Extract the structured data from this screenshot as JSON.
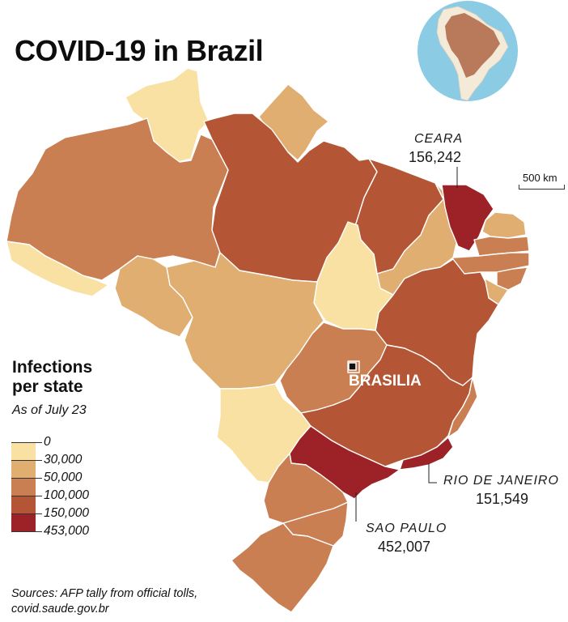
{
  "title": "COVID-19 in Brazil",
  "legend": {
    "title_line1": "Infections",
    "title_line2": "per state",
    "subtitle": "As of July 23",
    "ticks": [
      "0",
      "30,000",
      "50,000",
      "100,000",
      "150,000",
      "453,000"
    ],
    "colors": [
      "#f8e1a2",
      "#e0ae71",
      "#c97f52",
      "#b45635",
      "#9c2227"
    ]
  },
  "callouts": {
    "ceara": {
      "name": "CEARA",
      "value": "156,242"
    },
    "rio": {
      "name": "RIO DE JANEIRO",
      "value": "151,549"
    },
    "saopaulo": {
      "name": "SAO PAULO",
      "value": "452,007"
    }
  },
  "capital": {
    "name": "BRASILIA"
  },
  "scale": {
    "label": "500 km"
  },
  "sources": {
    "line1": "Sources: AFP tally from official tolls,",
    "line2": "covid.saude.gov.br"
  },
  "colors": {
    "ocean": "#8ccbe4",
    "globe_land": "#f4ead8",
    "globe_brazil": "#b97a5b"
  }
}
